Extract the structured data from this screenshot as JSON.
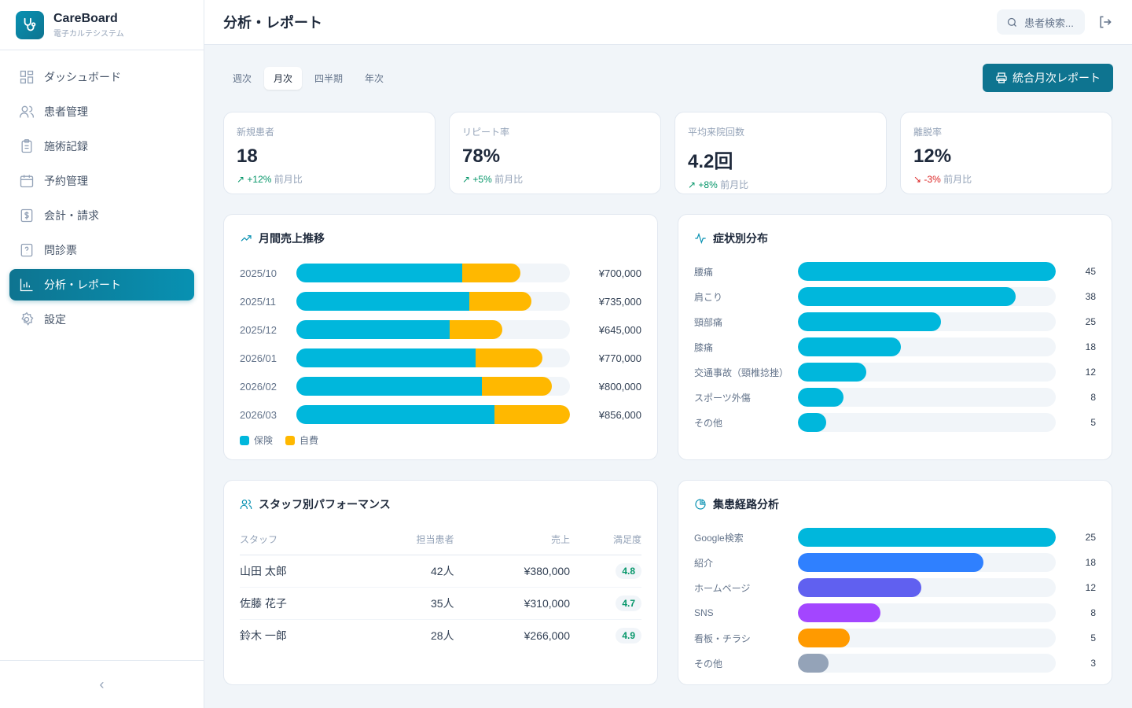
{
  "app": {
    "name": "CareBoard",
    "subtitle": "電子カルテシステム"
  },
  "sidebar": {
    "items": [
      {
        "label": "ダッシュボード",
        "icon": "dashboard-icon"
      },
      {
        "label": "患者管理",
        "icon": "users-icon"
      },
      {
        "label": "施術記録",
        "icon": "clipboard-icon"
      },
      {
        "label": "予約管理",
        "icon": "calendar-icon"
      },
      {
        "label": "会計・請求",
        "icon": "dollar-icon"
      },
      {
        "label": "問診票",
        "icon": "question-icon"
      },
      {
        "label": "分析・レポート",
        "icon": "chart-icon",
        "active": true
      },
      {
        "label": "設定",
        "icon": "gear-icon"
      }
    ],
    "collapse": "‹"
  },
  "header": {
    "title": "分析・レポート",
    "search_placeholder": "患者検索..."
  },
  "tabs": [
    "週次",
    "月次",
    "四半期",
    "年次"
  ],
  "active_tab": "月次",
  "report_button": "統合月次レポート",
  "stats": [
    {
      "label": "新規患者",
      "value": "18",
      "delta": "+12%",
      "trend": "up",
      "suffix": "前月比"
    },
    {
      "label": "リピート率",
      "value": "78%",
      "delta": "+5%",
      "trend": "up",
      "suffix": "前月比"
    },
    {
      "label": "平均来院回数",
      "value": "4.2回",
      "delta": "+8%",
      "trend": "up",
      "suffix": "前月比"
    },
    {
      "label": "離脱率",
      "value": "12%",
      "delta": "-3%",
      "trend": "down",
      "suffix": "前月比"
    }
  ],
  "colors": {
    "insurance": "#00b7dc",
    "self_pay": "#ffb800",
    "accent": "#0e7490"
  },
  "chart_data": [
    {
      "type": "bar",
      "title": "月間売上推移",
      "stacked": true,
      "orientation": "horizontal",
      "categories": [
        "2025/10",
        "2025/11",
        "2025/12",
        "2026/01",
        "2026/02",
        "2026/03"
      ],
      "series": [
        {
          "name": "保険",
          "values": [
            520000,
            540000,
            480000,
            560000,
            580000,
            620000
          ]
        },
        {
          "name": "自費",
          "values": [
            180000,
            195000,
            165000,
            210000,
            220000,
            236000
          ]
        }
      ],
      "totals": [
        "¥700,000",
        "¥735,000",
        "¥645,000",
        "¥770,000",
        "¥800,000",
        "¥856,000"
      ],
      "xlim": [
        0,
        856000
      ]
    },
    {
      "type": "bar",
      "title": "症状別分布",
      "orientation": "horizontal",
      "categories": [
        "腰痛",
        "肩こり",
        "頸部痛",
        "膝痛",
        "交通事故（頸椎捻挫）",
        "スポーツ外傷",
        "その他"
      ],
      "values": [
        45,
        38,
        25,
        18,
        12,
        8,
        5
      ],
      "xlim": [
        0,
        45
      ]
    },
    {
      "type": "bar",
      "title": "集患経路分析",
      "orientation": "horizontal",
      "categories": [
        "Google検索",
        "紹介",
        "ホームページ",
        "SNS",
        "看板・チラシ",
        "その他"
      ],
      "values": [
        25,
        18,
        12,
        8,
        5,
        3
      ],
      "colors": [
        "#00b7dc",
        "#2f80ff",
        "#6060f0",
        "#a346ff",
        "#ff9a00",
        "#94a3b8"
      ],
      "xlim": [
        0,
        25
      ]
    }
  ],
  "staff": {
    "title": "スタッフ別パフォーマンス",
    "headers": [
      "スタッフ",
      "担当患者",
      "売上",
      "満足度"
    ],
    "rows": [
      [
        "山田 太郎",
        "42人",
        "¥380,000",
        "4.8"
      ],
      [
        "佐藤 花子",
        "35人",
        "¥310,000",
        "4.7"
      ],
      [
        "鈴木 一郎",
        "28人",
        "¥266,000",
        "4.9"
      ]
    ]
  }
}
